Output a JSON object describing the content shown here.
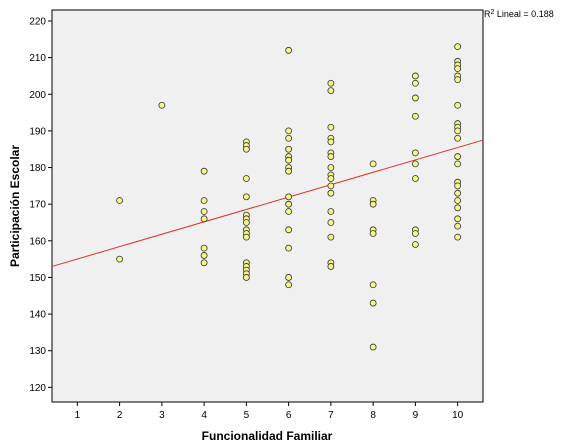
{
  "chart_data": {
    "type": "scatter",
    "xlabel": "Funcionalidad Familiar",
    "ylabel": "Participación Escolar",
    "xlim": [
      0.4,
      10.6
    ],
    "ylim": [
      116,
      223
    ],
    "x_ticks": [
      1,
      2,
      3,
      4,
      5,
      6,
      7,
      8,
      9,
      10
    ],
    "y_ticks": [
      120,
      130,
      140,
      150,
      160,
      170,
      180,
      190,
      200,
      210,
      220
    ],
    "grid": false,
    "legend": "none",
    "annotation": {
      "prefix": "R",
      "sup": "2",
      "text": " Lineal = 0.188"
    },
    "fit_line": {
      "type": "linear",
      "x": [
        0.4,
        10.6
      ],
      "y": [
        153,
        187.5
      ],
      "color": "#e03030"
    },
    "marker": {
      "fill": "#f5f58a",
      "stroke": "#333333"
    },
    "plot_background": "#f0f0f0",
    "points": [
      [
        2,
        171
      ],
      [
        2,
        155
      ],
      [
        3,
        197
      ],
      [
        4,
        179
      ],
      [
        4,
        171
      ],
      [
        4,
        168
      ],
      [
        4,
        166
      ],
      [
        4,
        158
      ],
      [
        4,
        156
      ],
      [
        4,
        154
      ],
      [
        5,
        187
      ],
      [
        5,
        186
      ],
      [
        5,
        185
      ],
      [
        5,
        177
      ],
      [
        5,
        172
      ],
      [
        5,
        167
      ],
      [
        5,
        166
      ],
      [
        5,
        165
      ],
      [
        5,
        163
      ],
      [
        5,
        162
      ],
      [
        5,
        161
      ],
      [
        5,
        154
      ],
      [
        5,
        153
      ],
      [
        5,
        152
      ],
      [
        5,
        151
      ],
      [
        5,
        150
      ],
      [
        6,
        212
      ],
      [
        6,
        190
      ],
      [
        6,
        188
      ],
      [
        6,
        185
      ],
      [
        6,
        183
      ],
      [
        6,
        182
      ],
      [
        6,
        180
      ],
      [
        6,
        179
      ],
      [
        6,
        172
      ],
      [
        6,
        170
      ],
      [
        6,
        168
      ],
      [
        6,
        163
      ],
      [
        6,
        158
      ],
      [
        6,
        150
      ],
      [
        6,
        148
      ],
      [
        7,
        203
      ],
      [
        7,
        201
      ],
      [
        7,
        191
      ],
      [
        7,
        188
      ],
      [
        7,
        187
      ],
      [
        7,
        184
      ],
      [
        7,
        183
      ],
      [
        7,
        180
      ],
      [
        7,
        178
      ],
      [
        7,
        177
      ],
      [
        7,
        175
      ],
      [
        7,
        173
      ],
      [
        7,
        168
      ],
      [
        7,
        165
      ],
      [
        7,
        161
      ],
      [
        7,
        154
      ],
      [
        7,
        153
      ],
      [
        8,
        181
      ],
      [
        8,
        171
      ],
      [
        8,
        170
      ],
      [
        8,
        163
      ],
      [
        8,
        162
      ],
      [
        8,
        148
      ],
      [
        8,
        143
      ],
      [
        8,
        131
      ],
      [
        9,
        205
      ],
      [
        9,
        203
      ],
      [
        9,
        199
      ],
      [
        9,
        194
      ],
      [
        9,
        184
      ],
      [
        9,
        181
      ],
      [
        9,
        177
      ],
      [
        9,
        163
      ],
      [
        9,
        162
      ],
      [
        9,
        159
      ],
      [
        10,
        213
      ],
      [
        10,
        209
      ],
      [
        10,
        208
      ],
      [
        10,
        207
      ],
      [
        10,
        205
      ],
      [
        10,
        204
      ],
      [
        10,
        197
      ],
      [
        10,
        192
      ],
      [
        10,
        191
      ],
      [
        10,
        190
      ],
      [
        10,
        188
      ],
      [
        10,
        183
      ],
      [
        10,
        181
      ],
      [
        10,
        176
      ],
      [
        10,
        175
      ],
      [
        10,
        173
      ],
      [
        10,
        171
      ],
      [
        10,
        169
      ],
      [
        10,
        166
      ],
      [
        10,
        164
      ],
      [
        10,
        161
      ]
    ]
  }
}
